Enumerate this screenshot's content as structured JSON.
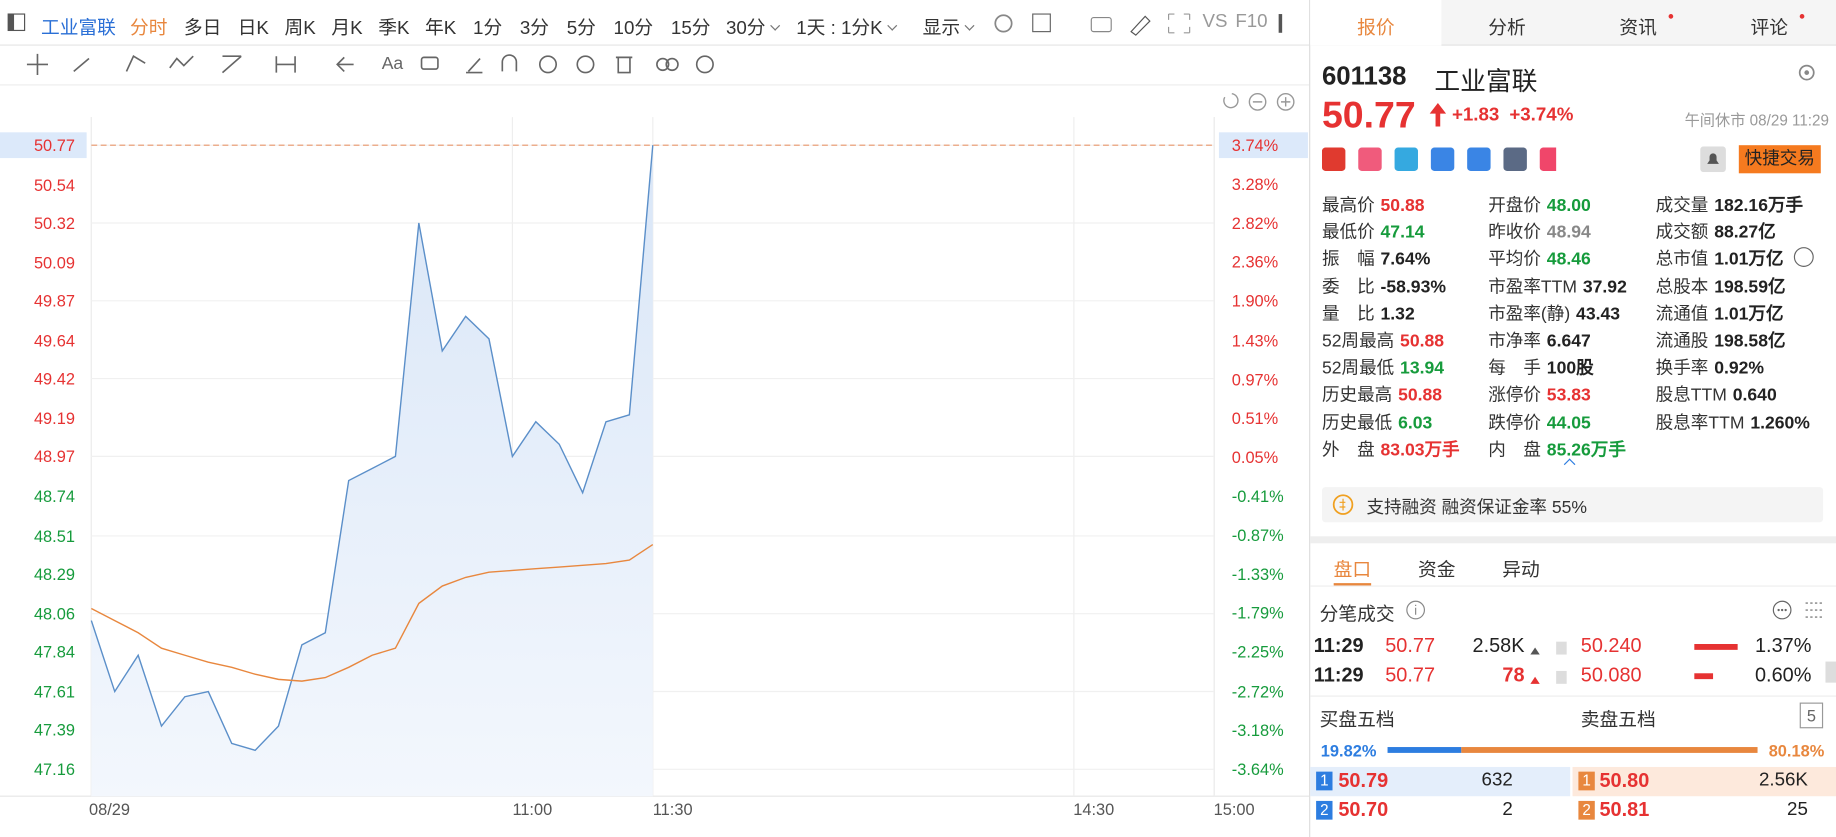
{
  "toolbar": {
    "stock": "工业富联",
    "tabs": [
      "分时",
      "多日",
      "日K",
      "周K",
      "月K",
      "季K",
      "年K",
      "1分",
      "3分",
      "5分",
      "10分",
      "15分",
      "30分",
      "1天 : 1分K",
      "显示"
    ],
    "active_index": 0,
    "aux": [
      "VS",
      "F10"
    ],
    "font_tool": "Aa"
  },
  "chart_data": {
    "type": "line",
    "x": [
      "09:30",
      "09:35",
      "09:40",
      "09:45",
      "09:50",
      "09:55",
      "10:00",
      "10:05",
      "10:10",
      "10:15",
      "10:20",
      "10:25",
      "10:30",
      "10:35",
      "10:40",
      "10:45",
      "10:50",
      "10:55",
      "11:00",
      "11:05",
      "11:10",
      "11:15",
      "11:20",
      "11:25",
      "11:30"
    ],
    "series": [
      {
        "color": "#5b8fc9",
        "values": [
          48.02,
          47.61,
          47.82,
          47.41,
          47.58,
          47.61,
          47.31,
          47.27,
          47.41,
          47.88,
          47.95,
          48.83,
          48.9,
          48.97,
          50.32,
          49.58,
          49.78,
          49.65,
          48.97,
          49.17,
          49.04,
          48.76,
          49.17,
          49.21,
          50.77
        ]
      },
      {
        "color": "#e8873e",
        "values": [
          48.09,
          48.02,
          47.95,
          47.86,
          47.82,
          47.78,
          47.75,
          47.71,
          47.68,
          47.67,
          47.69,
          47.75,
          47.82,
          47.86,
          48.12,
          48.22,
          48.27,
          48.3,
          48.31,
          48.32,
          48.33,
          48.34,
          48.35,
          48.37,
          48.46
        ]
      }
    ],
    "xlim": [
      "09:30",
      "15:00"
    ],
    "xticks": [
      {
        "value": "09:30",
        "label": "08/29"
      },
      "11:00",
      "11:30",
      "14:30",
      "15:00"
    ],
    "ylim": [
      47.16,
      50.77
    ],
    "yticks": [
      50.77,
      50.54,
      50.32,
      50.09,
      49.87,
      49.64,
      49.42,
      49.19,
      48.97,
      48.74,
      48.51,
      48.29,
      48.06,
      47.84,
      47.61,
      47.39,
      47.16
    ],
    "y2lim": [
      -3.64,
      3.74
    ],
    "y2ticks": [
      {
        "value": 3.74,
        "label": "3.74%"
      },
      {
        "value": 3.28,
        "label": "3.28%"
      },
      {
        "value": 2.82,
        "label": "2.82%"
      },
      {
        "value": 2.36,
        "label": "2.36%"
      },
      {
        "value": 1.9,
        "label": "1.90%"
      },
      {
        "value": 1.43,
        "label": "1.43%"
      },
      {
        "value": 0.97,
        "label": "0.97%"
      },
      {
        "value": 0.51,
        "label": "0.51%"
      },
      {
        "value": 0.05,
        "label": "0.05%"
      },
      {
        "value": -0.41,
        "label": "-0.41%"
      },
      {
        "value": -0.87,
        "label": "-0.87%"
      },
      {
        "value": -1.33,
        "label": "-1.33%"
      },
      {
        "value": -1.79,
        "label": "-1.79%"
      },
      {
        "value": -2.25,
        "label": "-2.25%"
      },
      {
        "value": -2.72,
        "label": "-2.72%"
      },
      {
        "value": -3.18,
        "label": "-3.18%"
      },
      {
        "value": -3.64,
        "label": "-3.64%"
      }
    ],
    "grid": true,
    "fill": true,
    "up_color": "#e63232",
    "down_color": "#169b3c"
  },
  "quote_panel": {
    "tabs": [
      "报价",
      "分析",
      "资讯",
      "评论"
    ],
    "code": "601138",
    "name": "工业富联",
    "price": "50.77",
    "change": "+1.83",
    "change_pct": "+3.74%",
    "status": "午间休市 08/29 11:29",
    "trade_button": "快捷交易",
    "stats": [
      [
        {
          "label": "最高价",
          "value": "50.88",
          "color": "up"
        },
        {
          "label": "最低价",
          "value": "47.14",
          "color": "down"
        },
        {
          "label": "振　幅",
          "value": "7.64%",
          "color": "dark"
        },
        {
          "label": "委　比",
          "value": "-58.93%",
          "color": "dark"
        },
        {
          "label": "量　比",
          "value": "1.32",
          "color": "dark"
        },
        {
          "label": "52周最高",
          "value": "50.88",
          "color": "up"
        },
        {
          "label": "52周最低",
          "value": "13.94",
          "color": "down"
        },
        {
          "label": "历史最高",
          "value": "50.88",
          "color": "up"
        },
        {
          "label": "历史最低",
          "value": "6.03",
          "color": "down"
        },
        {
          "label": "外　盘",
          "value": "83.03万手",
          "color": "up"
        }
      ],
      [
        {
          "label": "开盘价",
          "value": "48.00",
          "color": "down"
        },
        {
          "label": "昨收价",
          "value": "48.94",
          "color": "flat"
        },
        {
          "label": "平均价",
          "value": "48.46",
          "color": "down"
        },
        {
          "label": "市盈率TTM",
          "value": "37.92",
          "color": "dark"
        },
        {
          "label": "市盈率(静)",
          "value": "43.43",
          "color": "dark"
        },
        {
          "label": "市净率",
          "value": "6.647",
          "color": "dark"
        },
        {
          "label": "每　手",
          "value": "100股",
          "color": "dark"
        },
        {
          "label": "涨停价",
          "value": "53.83",
          "color": "up"
        },
        {
          "label": "跌停价",
          "value": "44.05",
          "color": "down"
        },
        {
          "label": "内　盘",
          "value": "85.26万手",
          "color": "down"
        }
      ],
      [
        {
          "label": "成交量",
          "value": "182.16万手",
          "color": "dark"
        },
        {
          "label": "成交额",
          "value": "88.27亿",
          "color": "dark"
        },
        {
          "label": "总市值",
          "value": "1.01万亿",
          "color": "dark"
        },
        {
          "label": "总股本",
          "value": "198.59亿",
          "color": "dark"
        },
        {
          "label": "流通值",
          "value": "1.01万亿",
          "color": "dark"
        },
        {
          "label": "流通股",
          "value": "198.58亿",
          "color": "dark"
        },
        {
          "label": "换手率",
          "value": "0.92%",
          "color": "dark"
        },
        {
          "label": "股息TTM",
          "value": "0.640",
          "color": "dark"
        },
        {
          "label": "股息率TTM",
          "value": "1.260%",
          "color": "dark"
        }
      ]
    ],
    "notice": "支持融资 融资保证金率 55%",
    "sub_tabs": [
      "盘口",
      "资金",
      "异动"
    ],
    "ticks_title": "分笔成交",
    "trades": [
      {
        "time": "11:29",
        "price": "50.77",
        "volume": "2.58K",
        "volume_color": "dark",
        "ref": "50.240",
        "pct": "1.37%"
      },
      {
        "time": "11:29",
        "price": "50.77",
        "volume": "78",
        "volume_color": "up",
        "ref": "50.080",
        "pct": "0.60%"
      }
    ],
    "book": {
      "buy_title": "买盘五档",
      "sell_title": "卖盘五档",
      "levels_badge": "5",
      "buy_ratio": {
        "value": 19.82,
        "label": "19.82%"
      },
      "sell_ratio": {
        "value": 80.18,
        "label": "80.18%"
      },
      "rows": [
        {
          "buy_level": "1",
          "buy_price": "50.79",
          "buy_volume": "632",
          "sell_level": "1",
          "sell_price": "50.80",
          "sell_volume": "2.56K"
        },
        {
          "buy_level": "2",
          "buy_price": "50.70",
          "buy_volume": "2",
          "sell_level": "2",
          "sell_price": "50.81",
          "sell_volume": "25"
        }
      ]
    }
  }
}
